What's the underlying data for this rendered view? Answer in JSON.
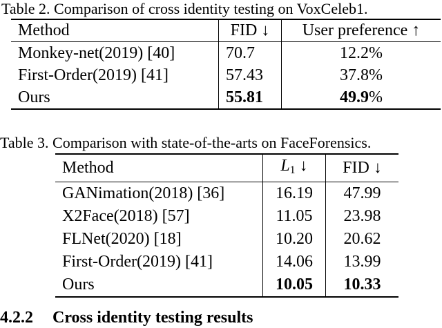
{
  "table2": {
    "caption": "Table 2. Comparison of cross identity testing on VoxCeleb1.",
    "headers": [
      "Method",
      "FID ↓",
      "User preference ↑"
    ],
    "rows": [
      {
        "method": "Monkey-net(2019) [40]",
        "fid": "70.7",
        "pref": "12.2",
        "pref_unit": "%"
      },
      {
        "method": "First-Order(2019) [41]",
        "fid": "57.43",
        "pref": "37.8",
        "pref_unit": "%"
      },
      {
        "method": "Ours",
        "fid": "55.81",
        "pref": "49.9",
        "pref_unit": "%"
      }
    ]
  },
  "table3": {
    "caption": "Table 3. Comparison with state-of-the-arts on FaceForensics.",
    "headers": {
      "method": "Method",
      "l1_base": "L",
      "l1_sub": "1",
      "l1_arrow": " ↓",
      "fid": "FID ↓"
    },
    "rows": [
      {
        "method": "GANimation(2018) [36]",
        "l1": "16.19",
        "fid": "47.99"
      },
      {
        "method": "X2Face(2018) [57]",
        "l1": "11.05",
        "fid": "23.98"
      },
      {
        "method": "FLNet(2020) [18]",
        "l1": "10.20",
        "fid": "20.62"
      },
      {
        "method": "First-Order(2019) [41]",
        "l1": "14.06",
        "fid": "13.99"
      },
      {
        "method": "Ours",
        "l1": "10.05",
        "fid": "10.33"
      }
    ]
  },
  "section": {
    "number": "4.2.2",
    "title": "Cross identity testing results"
  }
}
